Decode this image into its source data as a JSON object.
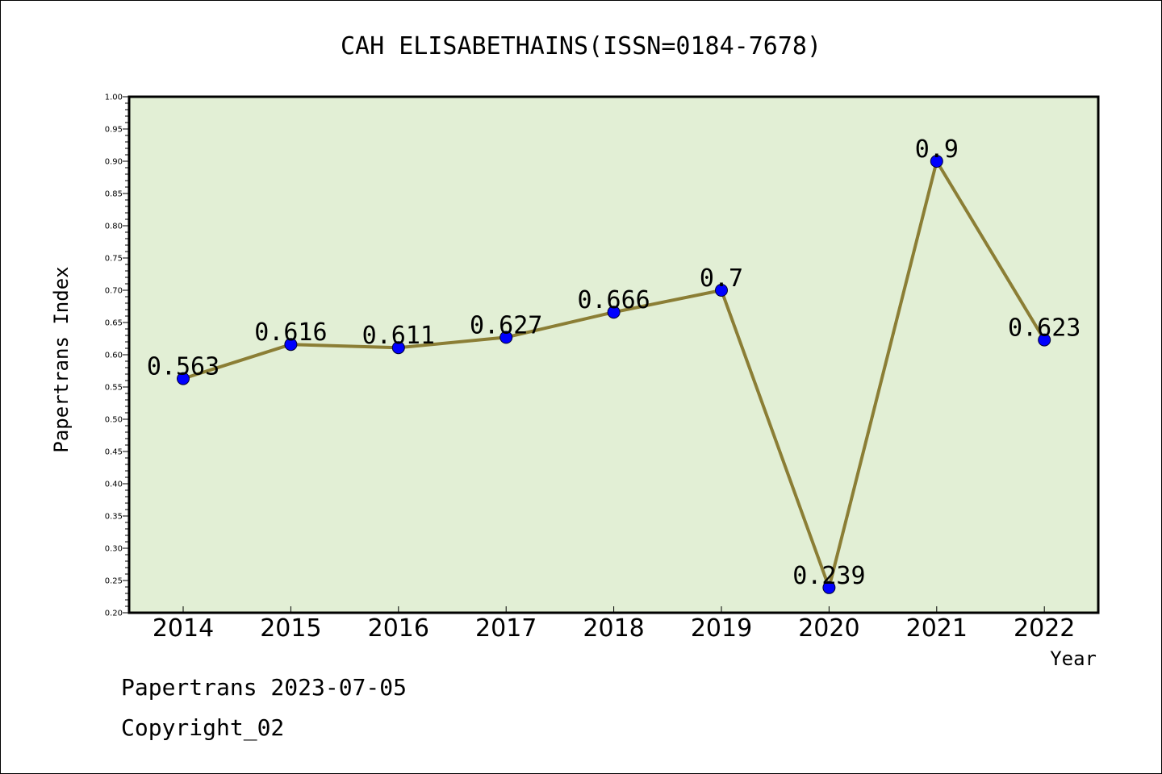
{
  "chart_data": {
    "type": "line",
    "title": "CAH ELISABETHAINS(ISSN=0184-7678)",
    "xlabel": "Year",
    "ylabel": "Papertrans Index",
    "categories": [
      "2014",
      "2015",
      "2016",
      "2017",
      "2018",
      "2019",
      "2020",
      "2021",
      "2022"
    ],
    "values": [
      0.563,
      0.616,
      0.611,
      0.627,
      0.666,
      0.7,
      0.239,
      0.9,
      0.623
    ],
    "data_labels": [
      "0.563",
      "0.616",
      "0.611",
      "0.627",
      "0.666",
      "0.7",
      "0.239",
      "0.9",
      "0.623"
    ],
    "ylim": [
      0.2,
      1.0
    ],
    "yticks": [
      "0.20",
      "0.25",
      "0.30",
      "0.35",
      "0.40",
      "0.45",
      "0.50",
      "0.55",
      "0.60",
      "0.65",
      "0.70",
      "0.75",
      "0.80",
      "0.85",
      "0.90",
      "0.95",
      "1.00"
    ],
    "grid": false,
    "colors": {
      "plot_background": "#e2efd5",
      "line": "#8b7e35",
      "marker": "#0000ff"
    }
  },
  "footer": {
    "line1": "Papertrans 2023-07-05",
    "line2": "Copyright_02"
  }
}
